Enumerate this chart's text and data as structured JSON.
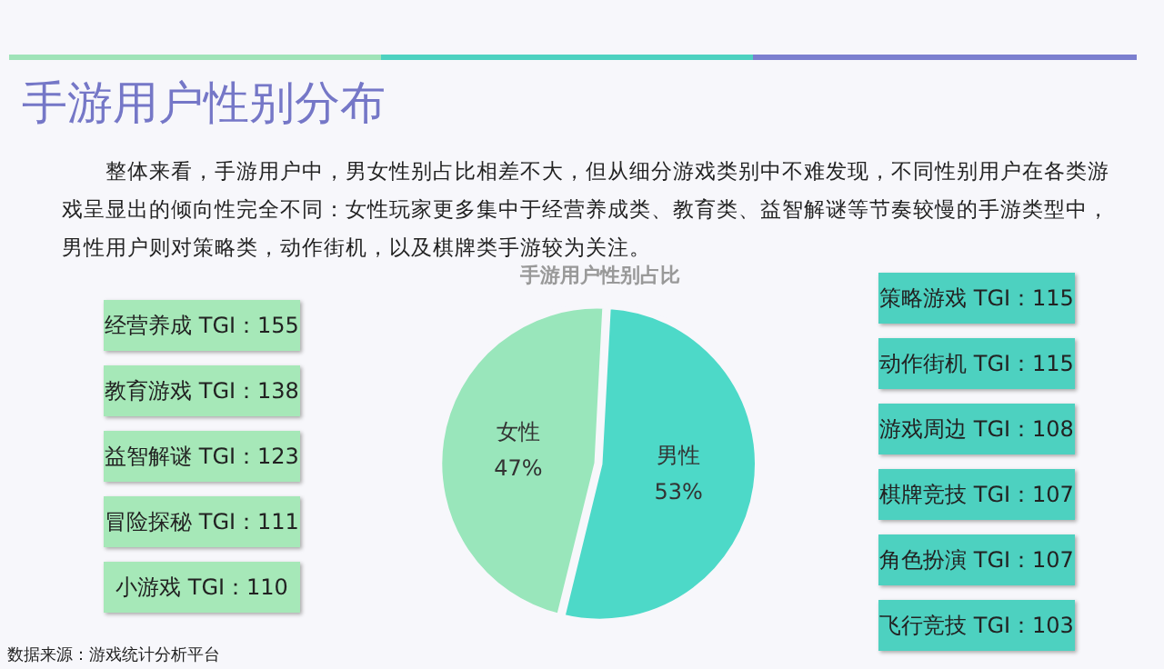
{
  "chart_data": {
    "type": "pie",
    "title": "手游用户性别分布",
    "subtitle": "手游用户性别占比",
    "categories": [
      "男性",
      "女性"
    ],
    "values": [
      53,
      47
    ],
    "colors": [
      "#4dd9c8",
      "#99e6bb"
    ],
    "value_labels": [
      "53%",
      "47%"
    ],
    "annotations": [
      "整体来看，手游用户中，男女性别占比相差不大，但从细分游戏类别中不难发现，不同性别用户在各类游戏呈显出的倾向性完全不同：女性玩家更多集中于经营养成类、教育类、益智解谜等节奏较慢的手游类型中，男性用户则对策略类，动作街机，以及棋牌类手游较为关注。",
      "经营养成 TGI：155",
      "教育游戏 TGI：138",
      "益智解谜 TGI：123",
      "冒险探秘 TGI：111",
      "小游戏 TGI：110",
      "策略游戏 TGI：115",
      "动作街机 TGI：115",
      "游戏周边 TGI：108",
      "棋牌竞技 TGI：107",
      "角色扮演 TGI：107",
      "飞行竞技 TGI：103",
      "数据来源：游戏统计分析平台"
    ]
  }
}
